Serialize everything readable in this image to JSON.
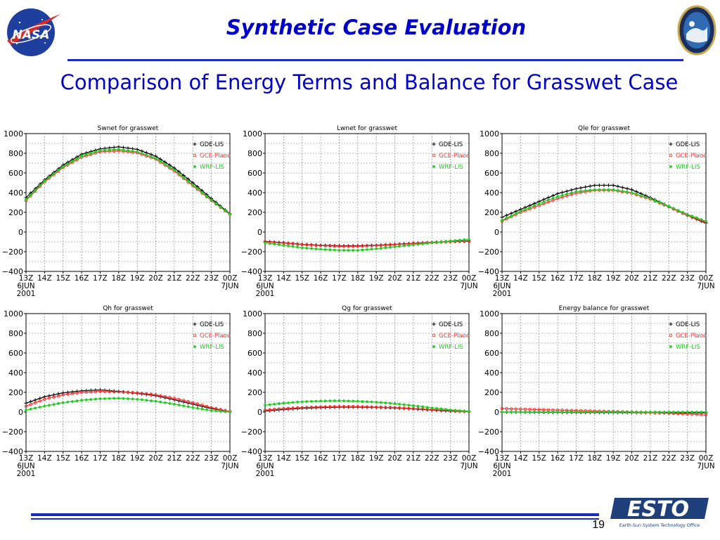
{
  "slide": {
    "title": "Synthetic Case Evaluation",
    "subtitle": "Comparison of Energy Terms and Balance for Grasswet Case",
    "page_number": "19"
  },
  "logos": {
    "nasa": "NASA",
    "esto": "ESTO",
    "esto_tagline": "Earth-Sun System Technology Office"
  },
  "colors": {
    "title": "#0000cc",
    "rule": "#1a2dbf",
    "gde_lis": "#000000",
    "gde_plaoe": "#ff3333",
    "wrf_lis": "#22cc22"
  },
  "chart_data": [
    {
      "type": "line",
      "title": "Swnet for grasswet",
      "x": [
        "13Z",
        "14Z",
        "15Z",
        "16Z",
        "17Z",
        "18Z",
        "19Z",
        "20Z",
        "21Z",
        "22Z",
        "23Z",
        "00Z"
      ],
      "x_sublabels": [
        [
          "6JUN",
          "2001"
        ],
        "",
        "",
        "",
        "",
        "",
        "",
        "",
        "",
        "",
        "",
        [
          "7JUN"
        ]
      ],
      "ylim": [
        -400,
        1000
      ],
      "yticks": [
        -400,
        -200,
        0,
        200,
        400,
        600,
        800,
        1000
      ],
      "grid": true,
      "legend": "top-right",
      "series": [
        {
          "name": "GDE-LIS",
          "values": [
            350,
            530,
            680,
            790,
            845,
            865,
            840,
            770,
            650,
            500,
            340,
            185
          ]
        },
        {
          "name": "GCE-Plaoe",
          "values": [
            320,
            510,
            655,
            760,
            815,
            825,
            805,
            740,
            620,
            470,
            320,
            180
          ]
        },
        {
          "name": "WRF-LIS",
          "values": [
            330,
            520,
            665,
            775,
            830,
            840,
            815,
            750,
            630,
            480,
            325,
            180
          ]
        }
      ]
    },
    {
      "type": "line",
      "title": "Lwnet for grasswet",
      "x": [
        "13Z",
        "14Z",
        "15Z",
        "16Z",
        "17Z",
        "18Z",
        "19Z",
        "20Z",
        "21Z",
        "22Z",
        "23Z",
        "00Z"
      ],
      "x_sublabels": [
        [
          "6JUN",
          "2001"
        ],
        "",
        "",
        "",
        "",
        "",
        "",
        "",
        "",
        "",
        "",
        [
          "7JUN"
        ]
      ],
      "ylim": [
        -400,
        1000
      ],
      "yticks": [
        -400,
        -200,
        0,
        200,
        400,
        600,
        800,
        1000
      ],
      "grid": true,
      "legend": "top-right",
      "series": [
        {
          "name": "GDE-LIS",
          "values": [
            -95,
            -110,
            -125,
            -135,
            -140,
            -140,
            -135,
            -125,
            -115,
            -105,
            -95,
            -90
          ]
        },
        {
          "name": "GCE-Plaoe",
          "values": [
            -100,
            -112,
            -128,
            -138,
            -145,
            -145,
            -138,
            -128,
            -118,
            -108,
            -98,
            -95
          ]
        },
        {
          "name": "WRF-LIS",
          "values": [
            -110,
            -135,
            -160,
            -175,
            -185,
            -185,
            -170,
            -150,
            -130,
            -110,
            -90,
            -75
          ]
        }
      ]
    },
    {
      "type": "line",
      "title": "Qle for grasswet",
      "x": [
        "13Z",
        "14Z",
        "15Z",
        "16Z",
        "17Z",
        "18Z",
        "19Z",
        "20Z",
        "21Z",
        "22Z",
        "23Z",
        "00Z"
      ],
      "x_sublabels": [
        [
          "6JUN",
          "2001"
        ],
        "",
        "",
        "",
        "",
        "",
        "",
        "",
        "",
        "",
        "",
        [
          "7JUN"
        ]
      ],
      "ylim": [
        -400,
        1000
      ],
      "yticks": [
        -400,
        -200,
        0,
        200,
        400,
        600,
        800,
        1000
      ],
      "grid": true,
      "legend": "top-right",
      "series": [
        {
          "name": "GDE-LIS",
          "values": [
            150,
            230,
            310,
            390,
            440,
            475,
            475,
            430,
            350,
            260,
            170,
            90
          ]
        },
        {
          "name": "GCE-Plaoe",
          "values": [
            110,
            200,
            270,
            340,
            395,
            425,
            425,
            395,
            335,
            255,
            170,
            100
          ]
        },
        {
          "name": "WRF-LIS",
          "values": [
            120,
            210,
            290,
            360,
            410,
            430,
            430,
            400,
            340,
            260,
            180,
            110
          ]
        }
      ]
    },
    {
      "type": "line",
      "title": "Qh for grasswet",
      "x": [
        "13Z",
        "14Z",
        "15Z",
        "16Z",
        "17Z",
        "18Z",
        "19Z",
        "20Z",
        "21Z",
        "22Z",
        "23Z",
        "00Z"
      ],
      "x_sublabels": [
        [
          "6JUN",
          "2001"
        ],
        "",
        "",
        "",
        "",
        "",
        "",
        "",
        "",
        "",
        "",
        [
          "7JUN"
        ]
      ],
      "ylim": [
        -400,
        1000
      ],
      "yticks": [
        -400,
        -200,
        0,
        200,
        400,
        600,
        800,
        1000
      ],
      "grid": true,
      "legend": "top-right",
      "series": [
        {
          "name": "GDE-LIS",
          "values": [
            90,
            155,
            195,
            215,
            225,
            210,
            190,
            165,
            125,
            80,
            35,
            5
          ]
        },
        {
          "name": "GCE-Plaoe",
          "values": [
            60,
            130,
            175,
            200,
            210,
            205,
            195,
            175,
            140,
            95,
            45,
            5
          ]
        },
        {
          "name": "WRF-LIS",
          "values": [
            20,
            60,
            95,
            120,
            135,
            140,
            130,
            110,
            80,
            45,
            15,
            0
          ]
        }
      ]
    },
    {
      "type": "line",
      "title": "Qg for grasswet",
      "x": [
        "13Z",
        "14Z",
        "15Z",
        "16Z",
        "17Z",
        "18Z",
        "19Z",
        "20Z",
        "21Z",
        "22Z",
        "23Z",
        "00Z"
      ],
      "x_sublabels": [
        [
          "6JUN",
          "2001"
        ],
        "",
        "",
        "",
        "",
        "",
        "",
        "",
        "",
        "",
        "",
        [
          "7JUN"
        ]
      ],
      "ylim": [
        -400,
        1000
      ],
      "yticks": [
        -400,
        -200,
        0,
        200,
        400,
        600,
        800,
        1000
      ],
      "grid": true,
      "legend": "top-right",
      "series": [
        {
          "name": "GDE-LIS",
          "values": [
            10,
            25,
            38,
            45,
            50,
            50,
            48,
            42,
            32,
            20,
            10,
            5
          ]
        },
        {
          "name": "GCE-Plaoe",
          "values": [
            20,
            35,
            45,
            52,
            55,
            55,
            50,
            45,
            35,
            25,
            15,
            5
          ]
        },
        {
          "name": "WRF-LIS",
          "values": [
            70,
            90,
            105,
            112,
            115,
            110,
            100,
            85,
            65,
            42,
            22,
            8
          ]
        }
      ]
    },
    {
      "type": "line",
      "title": "Energy balance for grasswet",
      "x": [
        "13Z",
        "14Z",
        "15Z",
        "16Z",
        "17Z",
        "18Z",
        "19Z",
        "20Z",
        "21Z",
        "22Z",
        "23Z",
        "00Z"
      ],
      "x_sublabels": [
        [
          "6JUN",
          "2001"
        ],
        "",
        "",
        "",
        "",
        "",
        "",
        "",
        "",
        "",
        "",
        [
          "7JUN"
        ]
      ],
      "ylim": [
        -400,
        1000
      ],
      "yticks": [
        -400,
        -200,
        0,
        200,
        400,
        600,
        800,
        1000
      ],
      "grid": true,
      "legend": "top-right",
      "series": [
        {
          "name": "GDE-LIS",
          "values": [
            0,
            0,
            -2,
            -3,
            -4,
            -5,
            -5,
            -6,
            -6,
            -7,
            -8,
            -8
          ]
        },
        {
          "name": "GCE-Plaoe",
          "values": [
            35,
            30,
            25,
            20,
            15,
            10,
            5,
            0,
            -5,
            -12,
            -20,
            -30
          ]
        },
        {
          "name": "WRF-LIS",
          "values": [
            0,
            0,
            0,
            0,
            0,
            0,
            0,
            0,
            0,
            0,
            0,
            0
          ]
        }
      ]
    }
  ]
}
